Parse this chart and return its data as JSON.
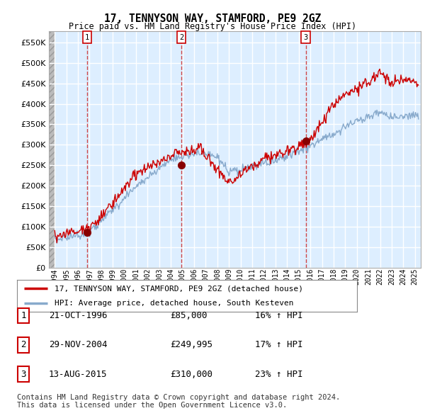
{
  "title": "17, TENNYSON WAY, STAMFORD, PE9 2GZ",
  "subtitle": "Price paid vs. HM Land Registry's House Price Index (HPI)",
  "ylim": [
    0,
    577000
  ],
  "ytick_vals": [
    0,
    50000,
    100000,
    150000,
    200000,
    250000,
    300000,
    350000,
    400000,
    450000,
    500000,
    550000
  ],
  "sale1_date": 1996.8,
  "sale1_price": 85000,
  "sale2_date": 2004.9,
  "sale2_price": 249995,
  "sale3_date": 2015.6,
  "sale3_price": 310000,
  "red_line_color": "#cc0000",
  "blue_line_color": "#88aacc",
  "vline_color": "#cc3333",
  "bg_color": "#ffffff",
  "chart_bg": "#ddeeff",
  "hatch_bg": "#cccccc",
  "legend_label_red": "17, TENNYSON WAY, STAMFORD, PE9 2GZ (detached house)",
  "legend_label_blue": "HPI: Average price, detached house, South Kesteven",
  "table_rows": [
    {
      "num": "1",
      "date": "21-OCT-1996",
      "price": "£85,000",
      "hpi": "16% ↑ HPI"
    },
    {
      "num": "2",
      "date": "29-NOV-2004",
      "price": "£249,995",
      "hpi": "17% ↑ HPI"
    },
    {
      "num": "3",
      "date": "13-AUG-2015",
      "price": "£310,000",
      "hpi": "23% ↑ HPI"
    }
  ],
  "footer": "Contains HM Land Registry data © Crown copyright and database right 2024.\nThis data is licensed under the Open Government Licence v3.0.",
  "xstart": 1993.5,
  "xend": 2025.5
}
